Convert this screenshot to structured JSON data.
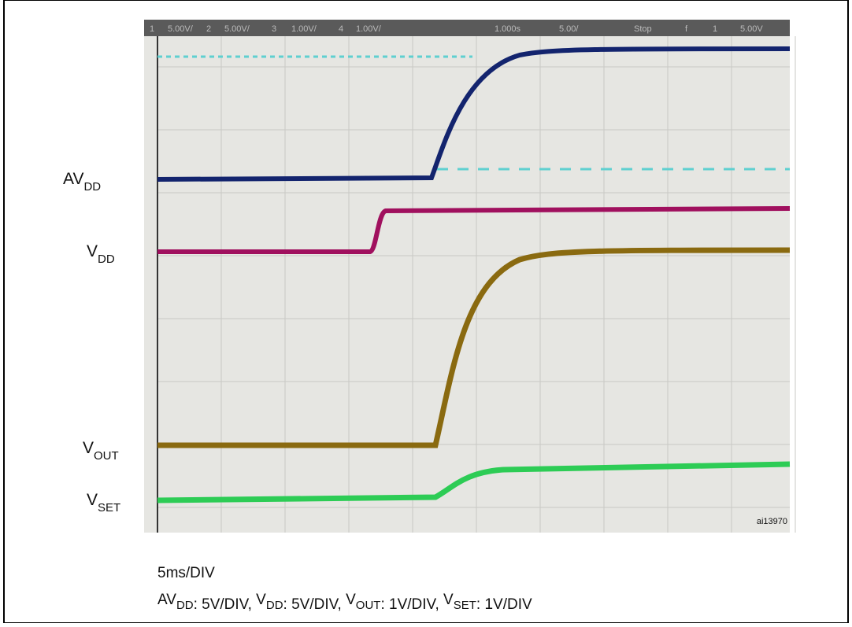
{
  "scope_header": {
    "items": [
      "1",
      "5.00V/",
      "2",
      "5.00V/",
      "3",
      "1.00V/",
      "4",
      "1.00V/",
      "1.000s",
      "5.00/",
      "Stop",
      "f",
      "1",
      "5.00V"
    ]
  },
  "trace_labels": [
    {
      "main": "AV",
      "sub": "DD"
    },
    {
      "main": "V",
      "sub": "DD"
    },
    {
      "main": "V",
      "sub": "OUT"
    },
    {
      "main": "V",
      "sub": "SET"
    }
  ],
  "image_id": "ai13970",
  "caption": {
    "timebase": "5ms/DIV",
    "scales": [
      {
        "main": "AV",
        "sub": "DD",
        "rest": ": 5V/DIV, "
      },
      {
        "main": "V",
        "sub": "DD",
        "rest": ": 5V/DIV, "
      },
      {
        "main": "V",
        "sub": "OUT",
        "rest": ": 1V/DIV, "
      },
      {
        "main": "V",
        "sub": "SET",
        "rest": ": 1V/DIV"
      }
    ]
  }
}
